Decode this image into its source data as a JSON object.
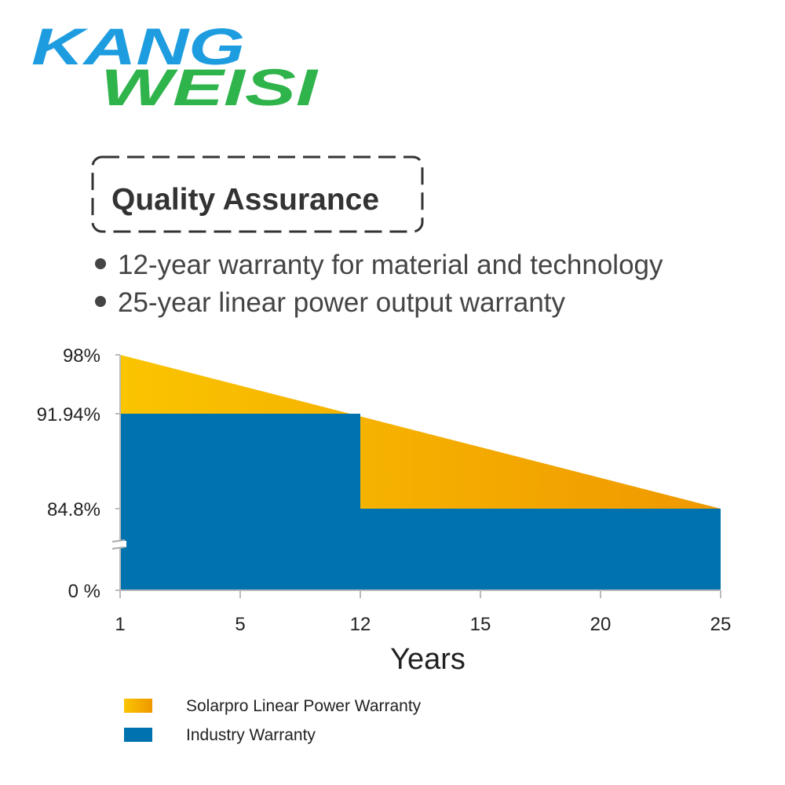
{
  "logo": [
    "KANG",
    "WEISI"
  ],
  "heading": "Quality Assurance",
  "bullets": [
    "12-year warranty for material and technology",
    "25-year linear power output warranty"
  ],
  "chart_data": {
    "type": "area",
    "xlabel": "Years",
    "xlim": [
      1,
      25
    ],
    "xticks": [
      1,
      5,
      12,
      15,
      20,
      25
    ],
    "ylim": [
      0,
      98
    ],
    "yticks": [
      {
        "value": 98,
        "label": "98%"
      },
      {
        "value": 91.94,
        "label": "91.94%"
      },
      {
        "value": 84.8,
        "label": "84.8%"
      },
      {
        "value": 0,
        "label": "0 %"
      }
    ],
    "series": [
      {
        "name": "Solarpro Linear Power Warranty",
        "color": "#f5ad00",
        "x": [
          1,
          25
        ],
        "values": [
          98,
          84.8
        ]
      },
      {
        "name": "Industry Warranty",
        "color": "#0073ae",
        "x": [
          1,
          12,
          12,
          25
        ],
        "values": [
          91.94,
          91.94,
          84.8,
          84.8
        ]
      }
    ]
  }
}
